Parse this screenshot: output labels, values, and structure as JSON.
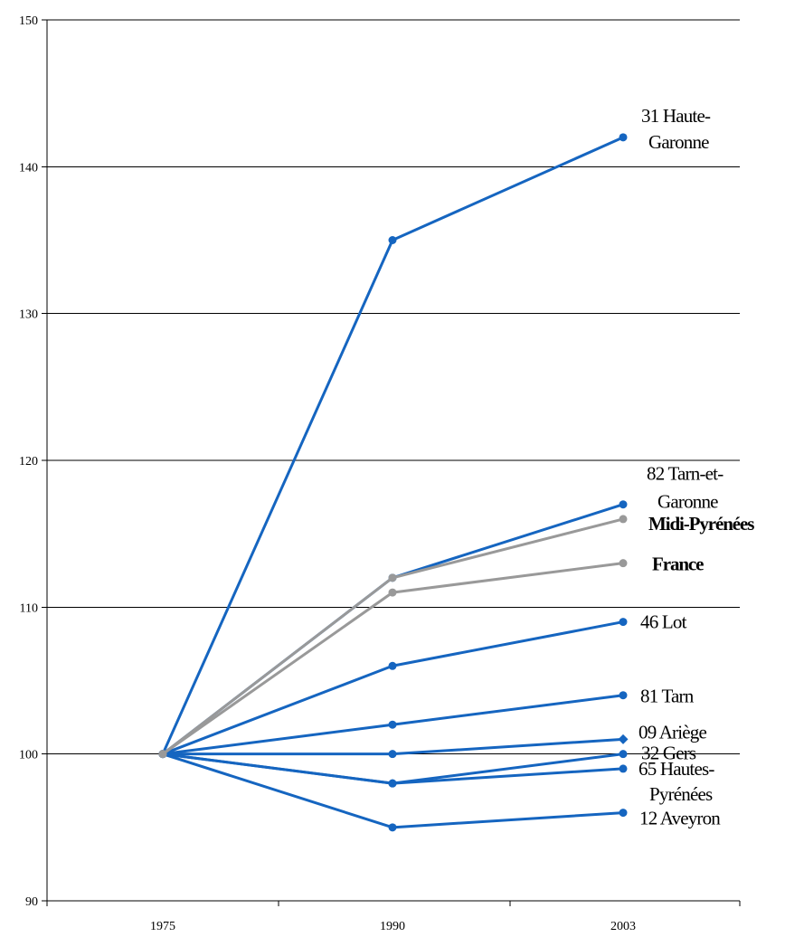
{
  "chart_data": {
    "type": "line",
    "title": "",
    "xlabel": "",
    "ylabel": "",
    "x": [
      "1975",
      "1990",
      "2003"
    ],
    "ylim": [
      90,
      150
    ],
    "y_ticks": [
      90,
      100,
      110,
      120,
      130,
      140,
      150
    ],
    "grid": true,
    "legend": "none",
    "series": [
      {
        "name": "31 Haute-Garonne",
        "label_lines": [
          "31 Haute-",
          "Garonne"
        ],
        "values": [
          100,
          135,
          142
        ],
        "color": "#1565c0",
        "marker": "circle",
        "bold": false
      },
      {
        "name": "82 Tarn-et-Garonne",
        "label_lines": [
          "82 Tarn-et-",
          "Garonne"
        ],
        "values": [
          100,
          112,
          117
        ],
        "color": "#1565c0",
        "marker": "circle",
        "bold": false
      },
      {
        "name": "Midi-Pyrénées",
        "label_lines": [
          "Midi-Pyrénées"
        ],
        "values": [
          100,
          112,
          116
        ],
        "color": "#999999",
        "marker": "circle",
        "bold": true
      },
      {
        "name": "France",
        "label_lines": [
          "France"
        ],
        "values": [
          100,
          111,
          113
        ],
        "color": "#999999",
        "marker": "circle",
        "bold": true
      },
      {
        "name": "46 Lot",
        "label_lines": [
          "46 Lot"
        ],
        "values": [
          100,
          106,
          109
        ],
        "color": "#1565c0",
        "marker": "circle",
        "bold": false
      },
      {
        "name": "81 Tarn",
        "label_lines": [
          "81 Tarn"
        ],
        "values": [
          100,
          102,
          104
        ],
        "color": "#1565c0",
        "marker": "circle",
        "bold": false
      },
      {
        "name": "09 Ariège",
        "label_lines": [
          "09 Ariège"
        ],
        "values": [
          100,
          100,
          101
        ],
        "color": "#1565c0",
        "marker": "diamond",
        "bold": false
      },
      {
        "name": "32 Gers",
        "label_lines": [
          "32 Gers"
        ],
        "values": [
          100,
          98,
          100
        ],
        "color": "#1565c0",
        "marker": "circle",
        "bold": false
      },
      {
        "name": "65 Hautes-Pyrénées",
        "label_lines": [
          "65 Hautes-",
          "Pyrénées"
        ],
        "values": [
          100,
          98,
          99
        ],
        "color": "#1565c0",
        "marker": "circle",
        "bold": false
      },
      {
        "name": "12 Aveyron",
        "label_lines": [
          "12 Aveyron"
        ],
        "values": [
          100,
          95,
          96
        ],
        "color": "#1565c0",
        "marker": "circle",
        "bold": false
      }
    ]
  }
}
